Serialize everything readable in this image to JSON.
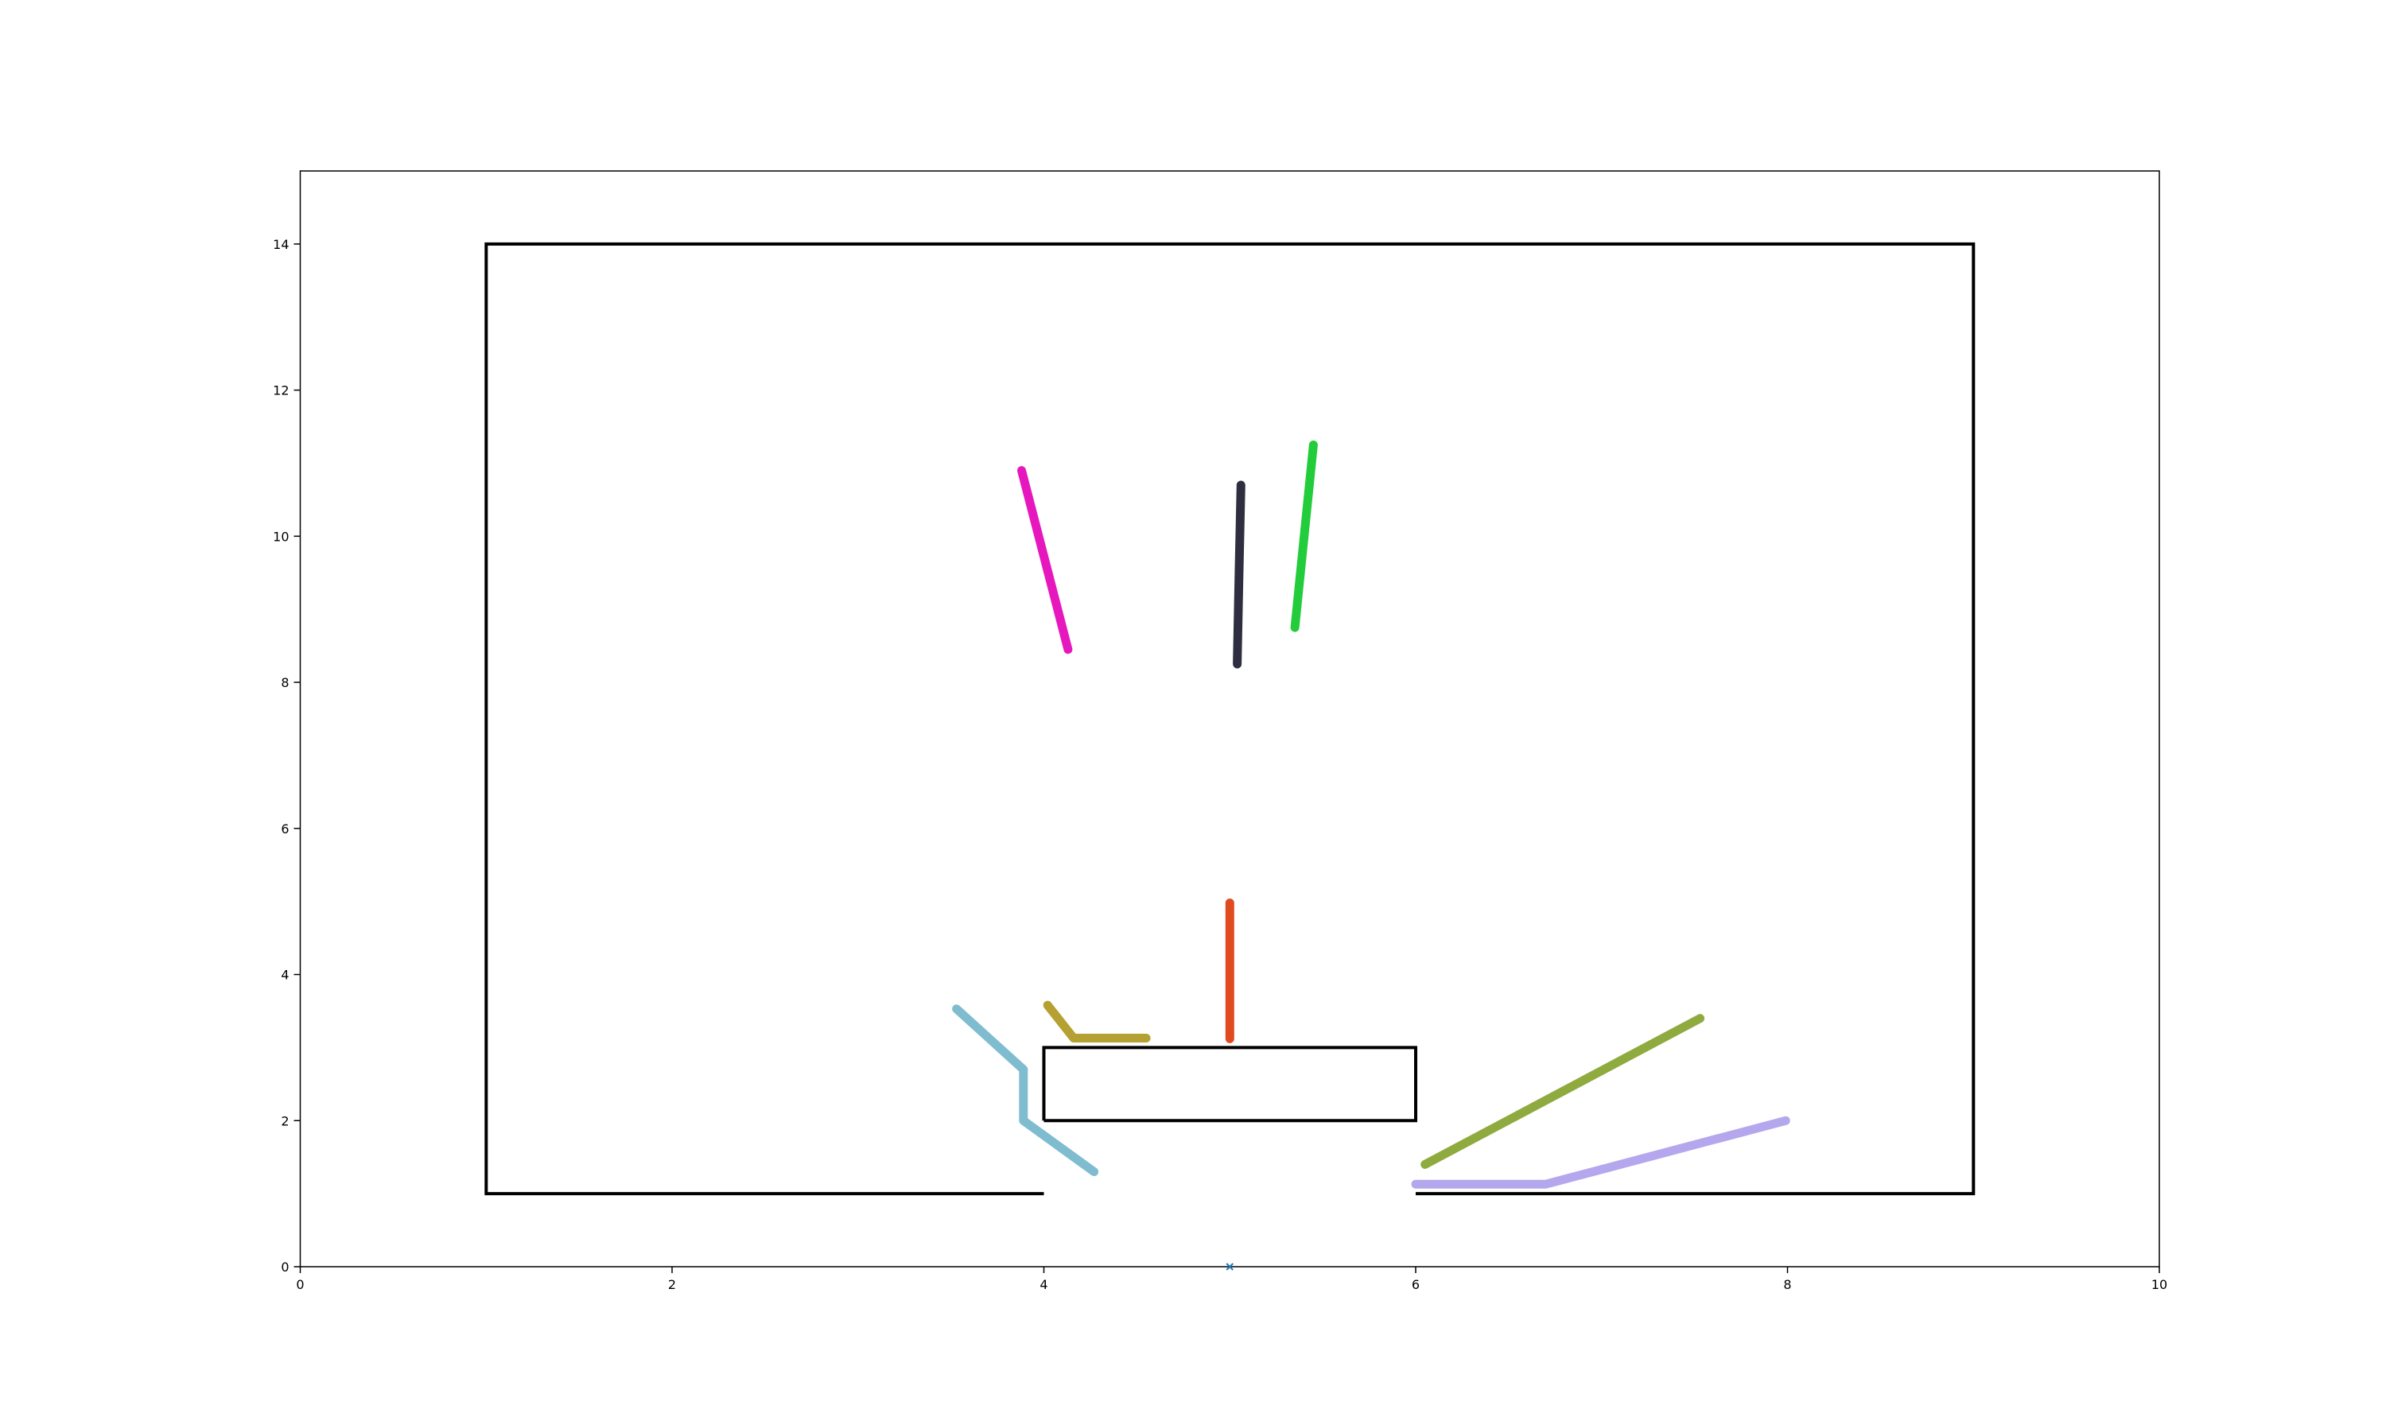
{
  "chart_data": {
    "type": "line",
    "title": "",
    "xlabel": "",
    "ylabel": "",
    "xlim": [
      0,
      10
    ],
    "ylim": [
      0,
      15
    ],
    "x_ticks": [
      0,
      2,
      4,
      6,
      8,
      10
    ],
    "y_ticks": [
      0,
      2,
      4,
      6,
      8,
      10,
      12,
      14
    ],
    "grid": false,
    "legend": "none",
    "walls": [
      {
        "name": "",
        "color": "#000000",
        "points": [
          [
            4,
            1
          ],
          [
            1,
            1
          ],
          [
            1,
            14
          ],
          [
            9,
            14
          ],
          [
            9,
            1
          ],
          [
            6,
            1
          ]
        ]
      },
      {
        "name": "",
        "color": "#000000",
        "points": [
          [
            4,
            2
          ],
          [
            6,
            2
          ],
          [
            6,
            3
          ],
          [
            4,
            3
          ],
          [
            4,
            2
          ]
        ]
      }
    ],
    "series": [
      {
        "color": "#e617bd",
        "points": [
          [
            3.88,
            10.9
          ],
          [
            4.13,
            8.45
          ]
        ]
      },
      {
        "color": "#2e2e40",
        "points": [
          [
            5.06,
            10.7
          ],
          [
            5.05,
            9.5
          ],
          [
            5.04,
            8.25
          ]
        ]
      },
      {
        "color": "#22cc3a",
        "points": [
          [
            5.45,
            11.25
          ],
          [
            5.35,
            8.75
          ]
        ]
      },
      {
        "color": "#e04a1f",
        "points": [
          [
            5.0,
            4.98
          ],
          [
            5.0,
            3.12
          ]
        ]
      },
      {
        "color": "#b5a032",
        "points": [
          [
            4.02,
            3.58
          ],
          [
            4.16,
            3.13
          ],
          [
            4.55,
            3.13
          ]
        ]
      },
      {
        "color": "#7fbccf",
        "points": [
          [
            3.53,
            3.53
          ],
          [
            3.89,
            2.7
          ],
          [
            3.89,
            2.0
          ],
          [
            4.27,
            1.3
          ]
        ]
      },
      {
        "color": "#8faa3e",
        "points": [
          [
            6.05,
            1.4
          ],
          [
            7.53,
            3.4
          ]
        ]
      },
      {
        "color": "#b5a7ee",
        "points": [
          [
            6.0,
            1.13
          ],
          [
            6.7,
            1.13
          ],
          [
            7.99,
            2.0
          ]
        ]
      }
    ],
    "markers": [
      {
        "color": "#1f77b4",
        "points": [
          [
            5.0,
            0.0
          ]
        ]
      }
    ]
  }
}
